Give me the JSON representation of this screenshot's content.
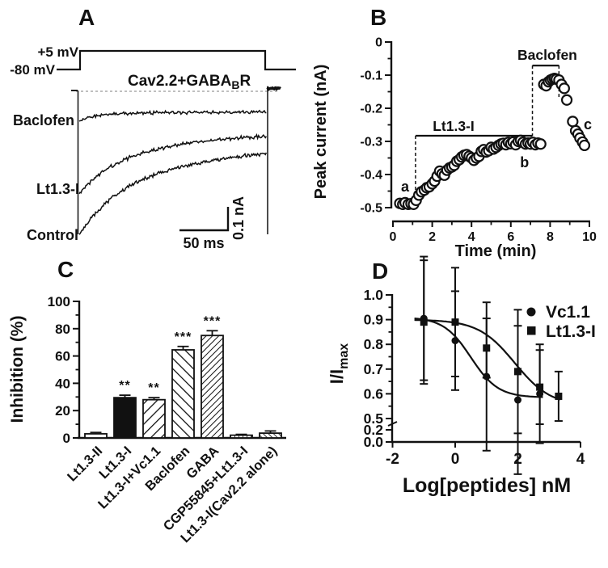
{
  "figure": {
    "background": "#ffffff",
    "ink": "#111111"
  },
  "panel_labels": {
    "a": "A",
    "b": "B",
    "c": "C",
    "d": "D"
  },
  "chart_data": [
    {
      "id": "A",
      "type": "line",
      "kind": "voltage-clamp current traces",
      "protocol": {
        "step_label": "+5 mV",
        "holding_label": "-80 mV"
      },
      "condition": {
        "main": "Cav2.2+GABA",
        "sub": "B",
        "end": "R"
      },
      "traces": [
        {
          "label": "Baclofen",
          "peak_nA": -0.132,
          "end_nA": -0.093
        },
        {
          "label": "Lt1.3-I",
          "peak_nA": -0.453,
          "end_nA": -0.171
        },
        {
          "label": "Control",
          "peak_nA": -0.633,
          "end_nA": -0.229
        }
      ],
      "scale_bar": {
        "time_label": "50 ms",
        "current_label": "0.1 nA"
      }
    },
    {
      "id": "B",
      "type": "scatter",
      "xlabel": "Time (min)",
      "ylabel": "Peak current (nA)",
      "xlim": [
        0,
        10
      ],
      "ylim": [
        -0.5,
        0
      ],
      "xticks": [
        "0",
        "2",
        "4",
        "6",
        "8",
        "10"
      ],
      "yticks": [
        "0",
        "-0.1",
        "-0.2",
        "-0.3",
        "-0.4",
        "-0.5"
      ],
      "application_bars": [
        {
          "label": "Lt1.3-I",
          "start_min": 1.15,
          "end_min": 7.1,
          "level_nA": -0.283
        },
        {
          "label": "Baclofen",
          "start_min": 7.1,
          "end_min": 8.45,
          "level_nA": -0.071
        }
      ],
      "annotations": [
        {
          "text": "a",
          "t": 0.62,
          "i": -0.451
        },
        {
          "text": "b",
          "t": 6.7,
          "i": -0.378
        },
        {
          "text": "c",
          "t": 9.92,
          "i": -0.263
        }
      ],
      "points": [
        [
          0.35,
          -0.487
        ],
        [
          0.5,
          -0.49
        ],
        [
          0.62,
          -0.485
        ],
        [
          0.78,
          -0.49
        ],
        [
          0.92,
          -0.488
        ],
        [
          1.05,
          -0.49
        ],
        [
          1.18,
          -0.478
        ],
        [
          1.32,
          -0.462
        ],
        [
          1.45,
          -0.452
        ],
        [
          1.6,
          -0.447
        ],
        [
          1.72,
          -0.44
        ],
        [
          1.85,
          -0.437
        ],
        [
          2.0,
          -0.428
        ],
        [
          2.12,
          -0.42
        ],
        [
          2.25,
          -0.405
        ],
        [
          2.38,
          -0.39
        ],
        [
          2.5,
          -0.398
        ],
        [
          2.62,
          -0.402
        ],
        [
          2.75,
          -0.387
        ],
        [
          2.88,
          -0.38
        ],
        [
          3.0,
          -0.377
        ],
        [
          3.12,
          -0.372
        ],
        [
          3.25,
          -0.36
        ],
        [
          3.38,
          -0.355
        ],
        [
          3.5,
          -0.347
        ],
        [
          3.62,
          -0.342
        ],
        [
          3.75,
          -0.34
        ],
        [
          3.88,
          -0.345
        ],
        [
          4.0,
          -0.35
        ],
        [
          4.12,
          -0.357
        ],
        [
          4.25,
          -0.35
        ],
        [
          4.38,
          -0.345
        ],
        [
          4.5,
          -0.33
        ],
        [
          4.62,
          -0.325
        ],
        [
          4.75,
          -0.332
        ],
        [
          4.88,
          -0.328
        ],
        [
          5.0,
          -0.318
        ],
        [
          5.12,
          -0.323
        ],
        [
          5.25,
          -0.318
        ],
        [
          5.38,
          -0.312
        ],
        [
          5.5,
          -0.308
        ],
        [
          5.62,
          -0.306
        ],
        [
          5.75,
          -0.31
        ],
        [
          5.88,
          -0.303
        ],
        [
          6.0,
          -0.307
        ],
        [
          6.12,
          -0.302
        ],
        [
          6.25,
          -0.31
        ],
        [
          6.38,
          -0.3
        ],
        [
          6.5,
          -0.297
        ],
        [
          6.62,
          -0.303
        ],
        [
          6.75,
          -0.308
        ],
        [
          6.88,
          -0.305
        ],
        [
          7.0,
          -0.308
        ],
        [
          7.12,
          -0.303
        ],
        [
          7.25,
          -0.31
        ],
        [
          7.38,
          -0.305
        ],
        [
          7.52,
          -0.308
        ],
        [
          7.68,
          -0.128
        ],
        [
          7.8,
          -0.132
        ],
        [
          7.92,
          -0.12
        ],
        [
          8.02,
          -0.115
        ],
        [
          8.12,
          -0.112
        ],
        [
          8.22,
          -0.11
        ],
        [
          8.32,
          -0.112
        ],
        [
          8.45,
          -0.115
        ],
        [
          8.58,
          -0.128
        ],
        [
          8.72,
          -0.14
        ],
        [
          8.85,
          -0.175
        ],
        [
          9.15,
          -0.24
        ],
        [
          9.3,
          -0.268
        ],
        [
          9.42,
          -0.278
        ],
        [
          9.52,
          -0.29
        ],
        [
          9.65,
          -0.302
        ],
        [
          9.75,
          -0.312
        ]
      ]
    },
    {
      "id": "C",
      "type": "bar",
      "ylabel": "Inhibition (%)",
      "ylim": [
        0,
        100
      ],
      "yticks": [
        "0",
        "20",
        "40",
        "60",
        "80",
        "100"
      ],
      "categories": [
        "Lt1.3-II",
        "Lt1.3-I",
        "Lt1.3-I+Vc1.1",
        "Baclofen",
        "GABA",
        "CGP55845+Lt1.3-I",
        "Lt1.3-I(Cav2.2 alone)"
      ],
      "values": [
        3,
        29.5,
        28,
        64.5,
        75,
        2,
        3.5
      ],
      "errors": [
        1,
        1.8,
        1.5,
        2.5,
        3.5,
        0.6,
        1.6
      ],
      "significance": [
        "",
        "**",
        "**",
        "***",
        "***",
        "",
        ""
      ],
      "patterns": [
        "open",
        "solid",
        "hatch-up-wide",
        "hatch-down-wide",
        "hatch-up-fine",
        "vlines",
        "hatch-down-fine"
      ]
    },
    {
      "id": "D",
      "type": "scatter-line",
      "xlabel": "Log[peptides] nM",
      "ylabel_main": "I/I",
      "ylabel_sub": "max",
      "xticks": [
        "-2",
        "0",
        "2",
        "4"
      ],
      "yticks_upper": [
        "1.0",
        "0.9",
        "0.8",
        "0.7",
        "0.6",
        "0.5"
      ],
      "yticks_lower": [
        "0.2",
        "0.0"
      ],
      "series": [
        {
          "name": "Vc1.1",
          "marker": "circle",
          "points": [
            [
              -1,
              0.905,
              0.025
            ],
            [
              0,
              0.815,
              0.02
            ],
            [
              1,
              0.67,
              0.03
            ],
            [
              2,
              0.575,
              0.03
            ],
            [
              2.7,
              0.6,
              0.02
            ]
          ],
          "curve": {
            "top": 0.91,
            "bottom": 0.585,
            "logIC50": 0.5,
            "hill": 1.0,
            "x_end": 2.8
          }
        },
        {
          "name": "Lt1.3-I",
          "marker": "square",
          "points": [
            [
              -1,
              0.89,
              0.025
            ],
            [
              0,
              0.89,
              0.022
            ],
            [
              1,
              0.785,
              0.012
            ],
            [
              2,
              0.69,
              0.025
            ],
            [
              2.7,
              0.627,
              0.015
            ],
            [
              3.3,
              0.59,
              0.01
            ]
          ],
          "curve": {
            "top": 0.9,
            "bottom": 0.55,
            "logIC50": 1.9,
            "hill": 0.75,
            "x_end": 3.35
          }
        }
      ]
    }
  ]
}
